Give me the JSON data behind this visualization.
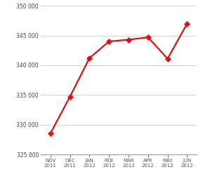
{
  "x_labels": [
    "NOV\n2011",
    "DEC\n2011",
    "JAN\n2012",
    "FEB\n2012",
    "MAR\n2012",
    "APR\n2012",
    "MAY\n2012",
    "JUN\n2012"
  ],
  "y_values": [
    328500,
    334700,
    341200,
    344000,
    344300,
    344700,
    341100,
    347000
  ],
  "line_color": "#dd1111",
  "marker": "D",
  "marker_size": 4,
  "ylim": [
    325000,
    350000
  ],
  "yticks": [
    325000,
    330000,
    335000,
    340000,
    345000,
    350000
  ],
  "ytick_labels": [
    "325 000",
    "330 000",
    "335 000",
    "340 000",
    "345 000",
    "350 000"
  ],
  "background_color": "#ffffff",
  "grid_color": "#cccccc"
}
